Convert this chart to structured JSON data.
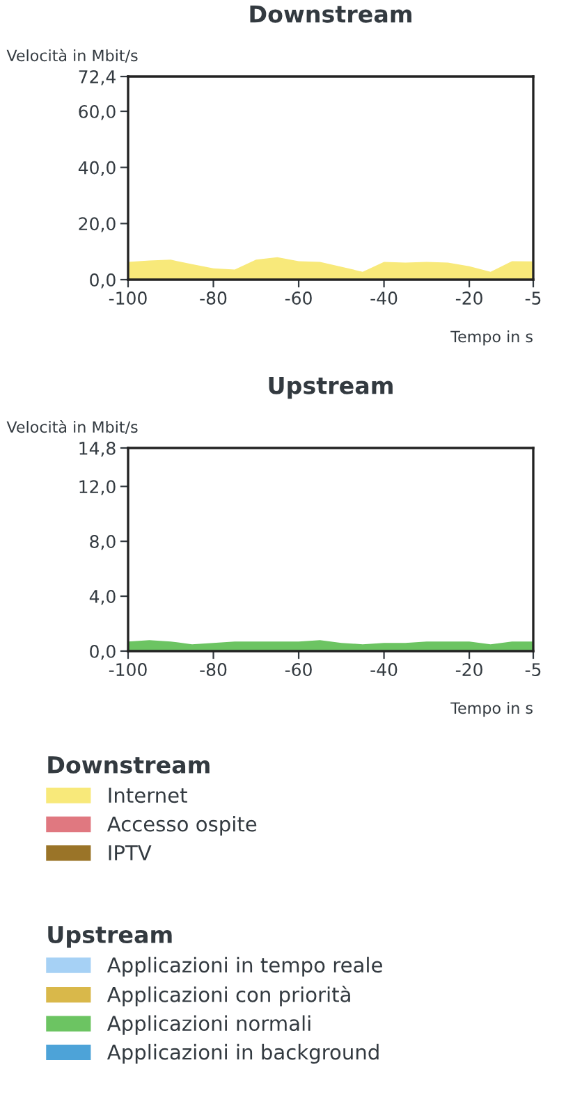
{
  "chart_data": [
    {
      "type": "area",
      "title": "Downstream",
      "xlabel": "Tempo in s",
      "ylabel": "Velocità in Mbit/s",
      "legend_title": "Downstream",
      "legend": "bottom",
      "grid": false,
      "x": [
        -100,
        -95,
        -90,
        -85,
        -80,
        -75,
        -70,
        -65,
        -60,
        -55,
        -50,
        -45,
        -40,
        -35,
        -30,
        -25,
        -20,
        -15,
        -10,
        -5
      ],
      "xlim": [
        -100,
        -5
      ],
      "xticks": [
        -100,
        -80,
        -60,
        -40,
        -20,
        -5
      ],
      "ylim": [
        0,
        72.4
      ],
      "yticks": [
        {
          "value": 0,
          "label": "0,0"
        },
        {
          "value": 20,
          "label": "20,0"
        },
        {
          "value": 40,
          "label": "40,0"
        },
        {
          "value": 60,
          "label": "60,0"
        },
        {
          "value": 72.4,
          "label": "72,4"
        }
      ],
      "series": [
        {
          "name": "Internet",
          "color": "#f8e97a",
          "values": [
            6.3,
            6.8,
            7.1,
            5.5,
            4.0,
            3.6,
            7.1,
            8.0,
            6.6,
            6.3,
            4.6,
            2.8,
            6.3,
            6.1,
            6.3,
            6.1,
            4.8,
            2.8,
            6.6,
            6.5
          ]
        },
        {
          "name": "Accesso ospite",
          "color": "#e07880",
          "values": [
            null,
            null,
            null,
            null,
            null,
            null,
            null,
            null,
            null,
            null,
            null,
            null,
            null,
            null,
            null,
            null,
            null,
            null,
            null,
            null
          ]
        },
        {
          "name": "IPTV",
          "color": "#9a7428",
          "values": [
            null,
            null,
            null,
            null,
            null,
            null,
            null,
            null,
            null,
            null,
            null,
            null,
            null,
            null,
            null,
            null,
            null,
            null,
            null,
            null
          ]
        }
      ]
    },
    {
      "type": "area",
      "title": "Upstream",
      "xlabel": "Tempo in s",
      "ylabel": "Velocità in Mbit/s",
      "legend_title": "Upstream",
      "legend": "bottom",
      "grid": false,
      "x": [
        -100,
        -95,
        -90,
        -85,
        -80,
        -75,
        -70,
        -65,
        -60,
        -55,
        -50,
        -45,
        -40,
        -35,
        -30,
        -25,
        -20,
        -15,
        -10,
        -5
      ],
      "xlim": [
        -100,
        -5
      ],
      "xticks": [
        -100,
        -80,
        -60,
        -40,
        -20,
        -5
      ],
      "ylim": [
        0,
        14.8
      ],
      "yticks": [
        {
          "value": 0,
          "label": "0,0"
        },
        {
          "value": 4,
          "label": "4,0"
        },
        {
          "value": 8,
          "label": "8,0"
        },
        {
          "value": 12,
          "label": "12,0"
        },
        {
          "value": 14.8,
          "label": "14,8"
        }
      ],
      "series": [
        {
          "name": "Applicazioni in tempo reale",
          "color": "#a6d1f5",
          "values": [
            null,
            null,
            null,
            null,
            null,
            null,
            null,
            null,
            null,
            null,
            null,
            null,
            null,
            null,
            null,
            null,
            null,
            null,
            null,
            null
          ]
        },
        {
          "name": "Applicazioni con priorità",
          "color": "#d9b84a",
          "values": [
            null,
            null,
            null,
            null,
            null,
            null,
            null,
            null,
            null,
            null,
            null,
            null,
            null,
            null,
            null,
            null,
            null,
            null,
            null,
            null
          ]
        },
        {
          "name": "Applicazioni normali",
          "color": "#6cc462",
          "values": [
            0.7,
            0.8,
            0.7,
            0.5,
            0.6,
            0.7,
            0.7,
            0.7,
            0.7,
            0.8,
            0.6,
            0.5,
            0.6,
            0.6,
            0.7,
            0.7,
            0.7,
            0.5,
            0.7,
            0.7
          ]
        },
        {
          "name": "Applicazioni in background",
          "color": "#4da3d8",
          "values": [
            null,
            null,
            null,
            null,
            null,
            null,
            null,
            null,
            null,
            null,
            null,
            null,
            null,
            null,
            null,
            null,
            null,
            null,
            null,
            null
          ]
        }
      ]
    }
  ]
}
